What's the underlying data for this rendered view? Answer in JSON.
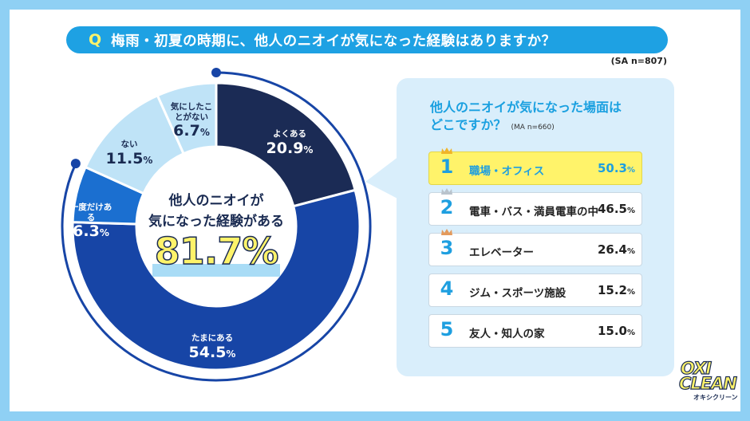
{
  "question": {
    "q_mark": "Q",
    "text": "梅雨・初夏の時期に、他人のニオイが気になった経験はありますか？",
    "sample": "(SA n=807)"
  },
  "center": {
    "line1": "他人のニオイが",
    "line2": "気になった経験がある",
    "big": "81.7%"
  },
  "chart_data": [
    {
      "type": "pie",
      "categories": [
        "よくある",
        "たまにある",
        "一度だけある",
        "ない",
        "気にしたことがない"
      ],
      "values": [
        20.9,
        54.5,
        6.3,
        11.5,
        6.7
      ],
      "value_labels": [
        "20.9",
        "54.5",
        "6.3",
        "11.5",
        "6.7"
      ],
      "unit": "%",
      "colors": [
        "#1b2b55",
        "#1745a6",
        "#1b6fd0",
        "#bfe3f7",
        "#bfe3f7"
      ],
      "highlight_total": 81.7
    },
    {
      "type": "table",
      "title_line1": "他人のニオイが気になった場面は",
      "title_line2": "どこですか？",
      "sample": "(MA n=660)",
      "ranks": [
        "1",
        "2",
        "3",
        "4",
        "5"
      ],
      "categories": [
        "職場・オフィス",
        "電車・バス・満員電車の中",
        "エレベーター",
        "ジム・スポーツ施設",
        "友人・知人の家"
      ],
      "value_labels": [
        "50.3",
        "46.5",
        "26.4",
        "15.2",
        "15.0"
      ],
      "values": [
        50.3,
        46.5,
        26.4,
        15.2,
        15.0
      ],
      "unit": "%"
    }
  ],
  "colors": {
    "accent": "#1ea1e3",
    "highlight": "#fff36a",
    "navy": "#1a2b52",
    "frame": "#8fd0f4"
  },
  "crown_icons": [
    "gold-crown-icon",
    "silver-crown-icon",
    "bronze-crown-icon"
  ],
  "logo": {
    "line1": "OXI",
    "line2": "CLEAN",
    "kana": "オキシクリーン"
  }
}
